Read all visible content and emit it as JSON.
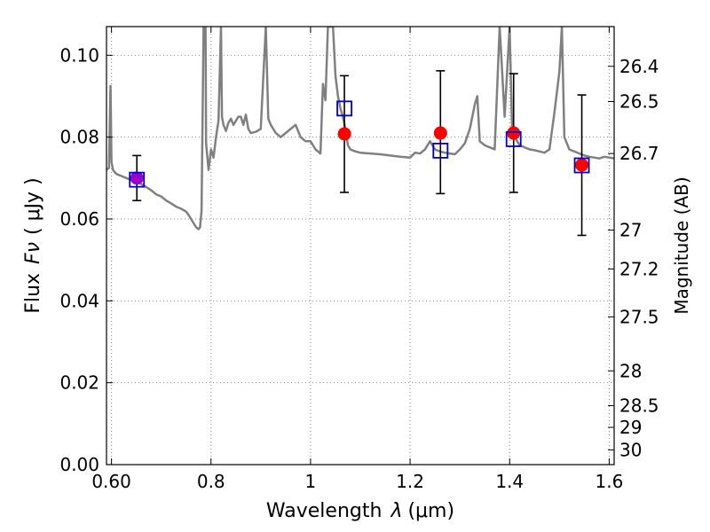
{
  "chart_data": {
    "type": "scatter",
    "title": "",
    "xlabel_prefix": "Wavelength",
    "xlabel_symbol": "λ",
    "xlabel_unit": "(μm)",
    "ylabel_prefix": "Flux",
    "ylabel_symbol": "Fν",
    "ylabel_unit": "( μJy )",
    "y2label": "Magnitude (AB)",
    "xlim": [
      0.59,
      1.61
    ],
    "ylim": [
      0.0,
      0.107
    ],
    "grid": true,
    "x_ticks": [
      0.6,
      0.8,
      1.0,
      1.2,
      1.4,
      1.6
    ],
    "x_tick_labels": [
      "0.60",
      "0.8",
      "1",
      "1.2",
      "1.4",
      "1.6"
    ],
    "y_ticks": [
      0.0,
      0.02,
      0.04,
      0.06,
      0.08,
      0.1
    ],
    "y_tick_labels": [
      "0.00",
      "0.02",
      "0.04",
      "0.06",
      "0.08",
      "0.10"
    ],
    "y2_ticks": [
      {
        "label": "26.4",
        "flux": 0.0973
      },
      {
        "label": "26.5",
        "flux": 0.0887
      },
      {
        "label": "26.7",
        "flux": 0.076
      },
      {
        "label": "27",
        "flux": 0.0573
      },
      {
        "label": "27.2",
        "flux": 0.0478
      },
      {
        "label": "27.5",
        "flux": 0.0361
      },
      {
        "label": "28",
        "flux": 0.0229
      },
      {
        "label": "28.5",
        "flux": 0.0144
      },
      {
        "label": "29",
        "flux": 0.0091
      },
      {
        "label": "30",
        "flux": 0.0036
      }
    ],
    "colors": {
      "model": "#808080",
      "observed": "#ff0000",
      "model_box": "#0000cc",
      "blend": "#9900cc",
      "error": "#000000",
      "grid": "#888888"
    },
    "series": [
      {
        "name": "observed",
        "marker": "circle",
        "points": [
          {
            "x": 0.651,
            "y": 0.07,
            "yerr_low": 0.0645,
            "yerr_high": 0.0755
          },
          {
            "x": 1.068,
            "y": 0.0808,
            "yerr_low": 0.0665,
            "yerr_high": 0.095
          },
          {
            "x": 1.261,
            "y": 0.081,
            "yerr_low": 0.0662,
            "yerr_high": 0.0962
          },
          {
            "x": 1.408,
            "y": 0.081,
            "yerr_low": 0.0665,
            "yerr_high": 0.0955
          },
          {
            "x": 1.545,
            "y": 0.0732,
            "yerr_low": 0.056,
            "yerr_high": 0.0903
          }
        ]
      },
      {
        "name": "model-photometry",
        "marker": "square",
        "points": [
          {
            "x": 0.651,
            "y": 0.0696
          },
          {
            "x": 1.068,
            "y": 0.087
          },
          {
            "x": 1.261,
            "y": 0.0767
          },
          {
            "x": 1.408,
            "y": 0.0795
          },
          {
            "x": 1.545,
            "y": 0.0731
          }
        ]
      },
      {
        "name": "model-spectrum",
        "marker": "line",
        "x": [
          0.59,
          0.595,
          0.598,
          0.6,
          0.603,
          0.606,
          0.61,
          0.62,
          0.63,
          0.64,
          0.65,
          0.66,
          0.67,
          0.68,
          0.69,
          0.7,
          0.71,
          0.72,
          0.73,
          0.74,
          0.75,
          0.755,
          0.76,
          0.765,
          0.77,
          0.775,
          0.778,
          0.781,
          0.785,
          0.789,
          0.79,
          0.795,
          0.8,
          0.805,
          0.81,
          0.815,
          0.82,
          0.822,
          0.825,
          0.83,
          0.835,
          0.84,
          0.845,
          0.85,
          0.855,
          0.86,
          0.865,
          0.87,
          0.875,
          0.88,
          0.89,
          0.9,
          0.91,
          0.915,
          0.92,
          0.925,
          0.93,
          0.94,
          0.95,
          0.96,
          0.97,
          0.98,
          0.99,
          1.0,
          1.01,
          1.02,
          1.025,
          1.03,
          1.035,
          1.04,
          1.045,
          1.05,
          1.055,
          1.06,
          1.065,
          1.07,
          1.075,
          1.08,
          1.09,
          1.1,
          1.12,
          1.14,
          1.16,
          1.18,
          1.2,
          1.21,
          1.22,
          1.23,
          1.24,
          1.25,
          1.26,
          1.27,
          1.28,
          1.29,
          1.3,
          1.31,
          1.32,
          1.33,
          1.335,
          1.34,
          1.35,
          1.36,
          1.37,
          1.38,
          1.39,
          1.4,
          1.405,
          1.41,
          1.42,
          1.43,
          1.44,
          1.45,
          1.46,
          1.47,
          1.48,
          1.49,
          1.5,
          1.505,
          1.51,
          1.52,
          1.53,
          1.54,
          1.55,
          1.56,
          1.57,
          1.58,
          1.59,
          1.6,
          1.61
        ],
        "y": [
          0.072,
          0.0725,
          0.0925,
          0.074,
          0.072,
          0.0715,
          0.071,
          0.0705,
          0.07,
          0.0695,
          0.0692,
          0.0685,
          0.0678,
          0.067,
          0.066,
          0.0655,
          0.0645,
          0.0638,
          0.063,
          0.0625,
          0.0618,
          0.061,
          0.06,
          0.059,
          0.058,
          0.0575,
          0.058,
          0.062,
          0.107,
          0.107,
          0.0785,
          0.072,
          0.077,
          0.075,
          0.08,
          0.084,
          0.107,
          0.085,
          0.083,
          0.0815,
          0.0835,
          0.0845,
          0.083,
          0.084,
          0.085,
          0.085,
          0.083,
          0.0855,
          0.082,
          0.081,
          0.0813,
          0.082,
          0.107,
          0.0845,
          0.083,
          0.082,
          0.081,
          0.08,
          0.081,
          0.082,
          0.083,
          0.08,
          0.079,
          0.079,
          0.077,
          0.076,
          0.093,
          0.089,
          0.107,
          0.107,
          0.107,
          0.095,
          0.09,
          0.087,
          0.085,
          0.082,
          0.078,
          0.077,
          0.0765,
          0.0762,
          0.076,
          0.0758,
          0.0755,
          0.0752,
          0.075,
          0.0762,
          0.076,
          0.077,
          0.079,
          0.077,
          0.0765,
          0.0762,
          0.076,
          0.0758,
          0.077,
          0.0785,
          0.082,
          0.088,
          0.09,
          0.079,
          0.078,
          0.0775,
          0.077,
          0.107,
          0.085,
          0.107,
          0.082,
          0.08,
          0.078,
          0.0775,
          0.077,
          0.0768,
          0.0765,
          0.0762,
          0.077,
          0.086,
          0.096,
          0.107,
          0.08,
          0.077,
          0.0765,
          0.076,
          0.0755,
          0.0752,
          0.075,
          0.0748,
          0.0752,
          0.075,
          0.0748
        ]
      }
    ]
  }
}
